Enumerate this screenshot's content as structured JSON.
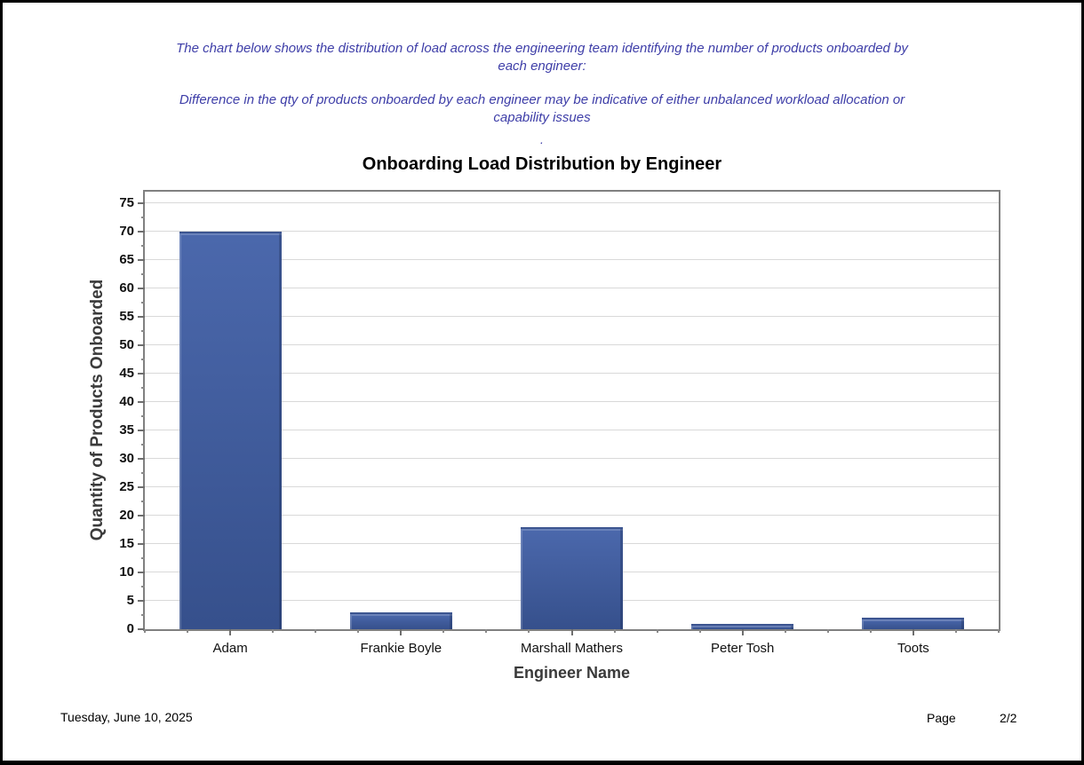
{
  "page": {
    "header": {
      "para1": "The chart below shows the distribution of load across the engineering team identifying the number of products onboarded by each engineer:",
      "para2": "Difference in the qty of products onboarded by each engineer may be indicative of either unbalanced workload allocation or capability issues",
      "dot": "."
    }
  },
  "chart_data": {
    "type": "bar",
    "title": "Onboarding Load Distribution by Engineer",
    "categories": [
      "Adam",
      "Frankie Boyle",
      "Marshall Mathers",
      "Peter Tosh",
      "Toots"
    ],
    "values": [
      70,
      3,
      18,
      1,
      2
    ],
    "xlabel": "Engineer Name",
    "ylabel": "Quantity of Products Onboarded",
    "ylim": [
      0,
      77
    ],
    "ytick_step": 5,
    "ytick_max": 75,
    "yminor_step": 2.5,
    "grid": true,
    "legend": "none"
  },
  "colors": {
    "header_text": "#3E3EA8",
    "bar_top": "#4B68AC",
    "bar_bottom": "#36508C",
    "gridline": "#D9D9D9",
    "plot_border": "#808080"
  },
  "footer": {
    "date": "Tuesday, June 10, 2025",
    "page_label": "Page",
    "page_number": "2/2"
  }
}
